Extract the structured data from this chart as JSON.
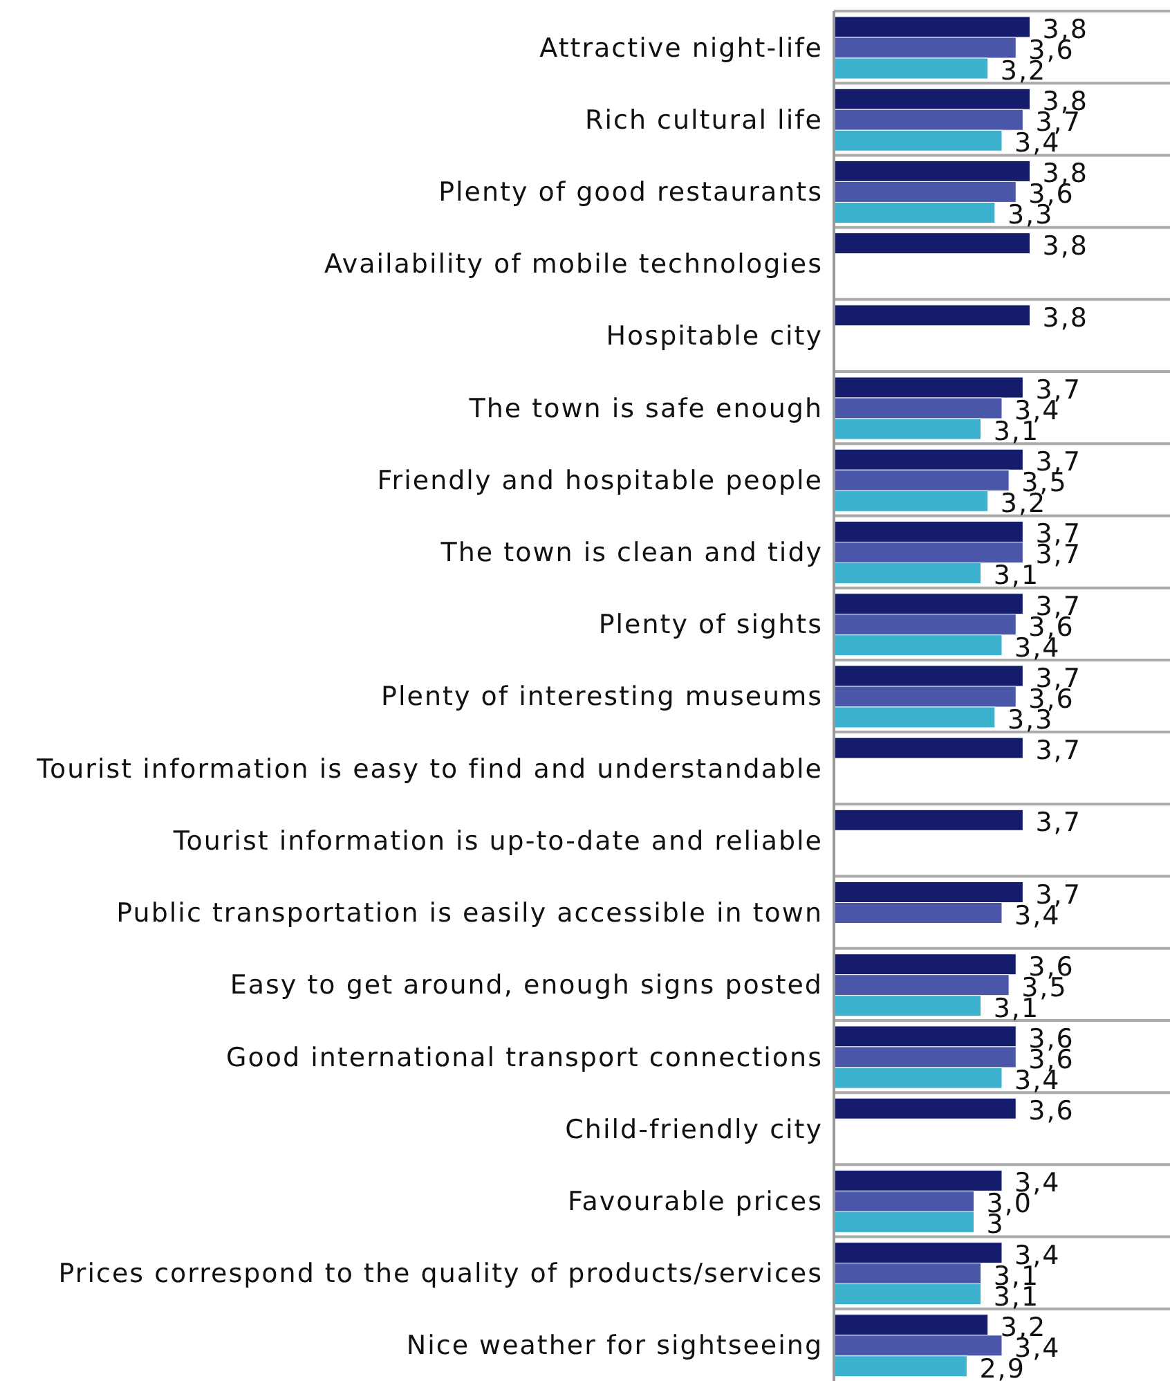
{
  "chart_data": {
    "type": "bar",
    "orientation": "horizontal",
    "categories": [
      "Attractive night-life",
      "Rich cultural life",
      "Plenty of good restaurants",
      "Availability of mobile technologies",
      "Hospitable city",
      "The town is safe enough",
      "Friendly and hospitable people",
      "The town is clean and tidy",
      "Plenty of sights",
      "Plenty of interesting museums",
      "Tourist information is easy to find and understandable",
      "Tourist information is up-to-date and reliable",
      "Public transportation is easily accessible in town",
      "Easy to get around, enough signs posted",
      "Good international transport connections",
      "Child-friendly city",
      "Favourable prices",
      "Prices correspond to the quality of products/services",
      "Nice weather for sightseeing"
    ],
    "series": [
      {
        "color": "#141c6b",
        "values": [
          3.8,
          3.8,
          3.8,
          3.8,
          3.8,
          3.7,
          3.7,
          3.7,
          3.7,
          3.7,
          3.7,
          3.7,
          3.7,
          3.6,
          3.6,
          3.6,
          3.4,
          3.4,
          3.2
        ],
        "value_labels": [
          "3,8",
          "3,8",
          "3,8",
          "3,8",
          "3,8",
          "3,7",
          "3,7",
          "3,7",
          "3,7",
          "3,7",
          "3,7",
          "3,7",
          "3,7",
          "3,6",
          "3,6",
          "3,6",
          "3,4",
          "3,4",
          "3,2"
        ]
      },
      {
        "color": "#4a56a8",
        "values": [
          3.6,
          3.7,
          3.6,
          null,
          null,
          3.4,
          3.5,
          3.7,
          3.6,
          3.6,
          null,
          null,
          3.4,
          3.5,
          3.6,
          null,
          3.0,
          3.1,
          3.4
        ],
        "value_labels": [
          "3,6",
          "3,7",
          "3,6",
          null,
          null,
          "3,4",
          "3,5",
          "3,7",
          "3,6",
          "3,6",
          null,
          null,
          "3,4",
          "3,5",
          "3,6",
          null,
          "3,0",
          "3,1",
          "3,4"
        ]
      },
      {
        "color": "#3db2cf",
        "values": [
          3.2,
          3.4,
          3.3,
          null,
          null,
          3.1,
          3.2,
          3.1,
          3.4,
          3.3,
          null,
          null,
          null,
          3.1,
          3.4,
          null,
          3.0,
          3.1,
          2.9
        ],
        "value_labels": [
          "3,2",
          "3,4",
          "3,3",
          null,
          null,
          "3,1",
          "3,2",
          "3,1",
          "3,4",
          "3,3",
          null,
          null,
          null,
          "3,1",
          "3,4",
          null,
          "3",
          "3,1",
          "2,9"
        ]
      }
    ],
    "xlim": [
      1,
      5.8
    ],
    "tick_labels": "y",
    "grid": "y"
  }
}
